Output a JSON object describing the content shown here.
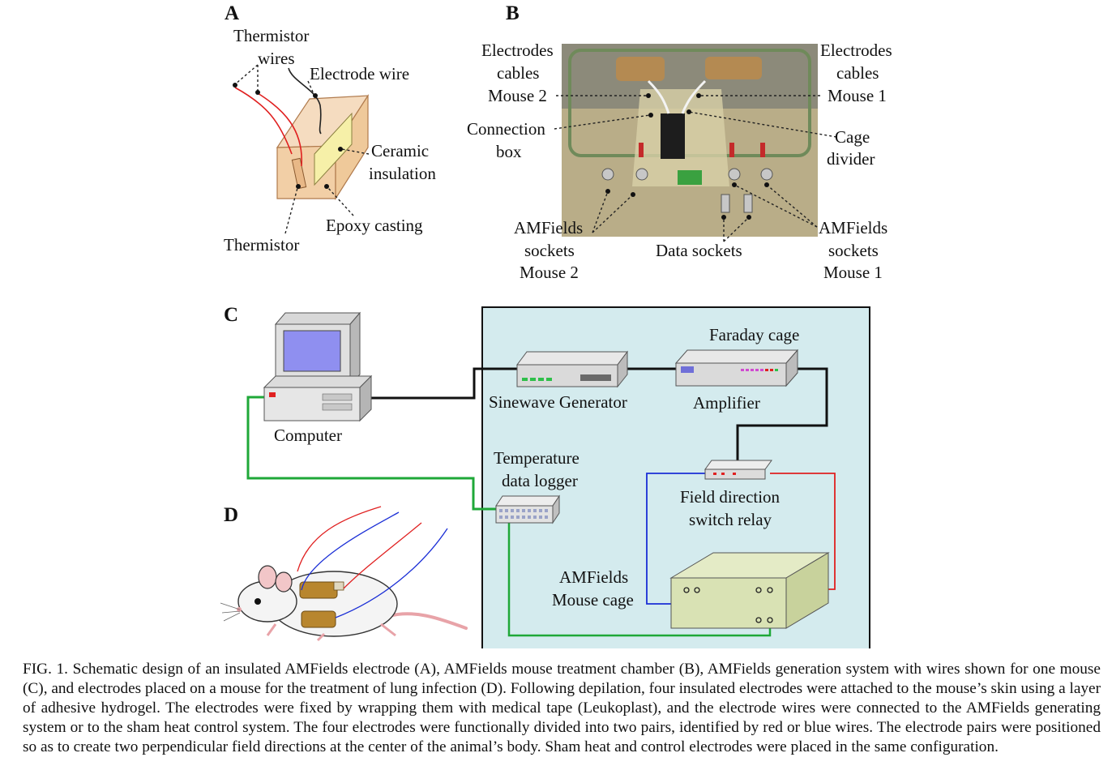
{
  "panels": {
    "a": "A",
    "b": "B",
    "c": "C",
    "d": "D"
  },
  "panel_a": {
    "thermistor_wires": [
      "Thermistor",
      "wires"
    ],
    "electrode_wire": "Electrode wire",
    "ceramic_insulation": [
      "Ceramic",
      "insulation"
    ],
    "epoxy_casting": "Epoxy casting",
    "thermistor": "Thermistor"
  },
  "panel_b": {
    "electrodes_cables_mouse2": [
      "Electrodes",
      "cables",
      "Mouse 2"
    ],
    "electrodes_cables_mouse1": [
      "Electrodes",
      "cables",
      "Mouse 1"
    ],
    "connection_box": [
      "Connection",
      "box"
    ],
    "cage_divider": [
      "Cage",
      "divider"
    ],
    "amfields_sockets_mouse2": [
      "AMFields",
      "sockets",
      "Mouse 2"
    ],
    "data_sockets": "Data sockets",
    "amfields_sockets_mouse1": [
      "AMFields",
      "sockets",
      "Mouse 1"
    ]
  },
  "panel_c": {
    "computer": "Computer",
    "faraday_cage": "Faraday cage",
    "sinewave_generator": "Sinewave Generator",
    "amplifier": "Amplifier",
    "temperature_data_logger": [
      "Temperature",
      "data logger"
    ],
    "field_direction_switch_relay": [
      "Field direction",
      "switch relay"
    ],
    "amfields_mouse_cage": [
      "AMFields",
      "Mouse cage"
    ]
  },
  "colors": {
    "faraday_bg": "#d4ebee",
    "green_wire": "#1fa838",
    "red_wire": "#e02020",
    "blue_wire": "#1a2ed6",
    "cage_box": "#d9e2b4"
  },
  "caption": "FIG. 1. Schematic design of an insulated AMFields electrode (A), AMFields mouse treatment chamber (B), AMFields generation system with wires shown for one mouse (C), and electrodes placed on a mouse for the treatment of lung infection (D). Following depilation, four insulated electrodes were attached to the mouse’s skin using a layer of adhesive hydrogel. The electrodes were fixed by wrapping them with medical tape (Leukoplast), and the electrode wires were connected to the AMFields generating system or to the sham heat control system. The four electrodes were functionally divided into two pairs, identified by red or blue wires. The electrode pairs were positioned so as to create two perpendicular field directions at the center of the animal’s body. Sham heat and control electrodes were placed in the same configuration."
}
